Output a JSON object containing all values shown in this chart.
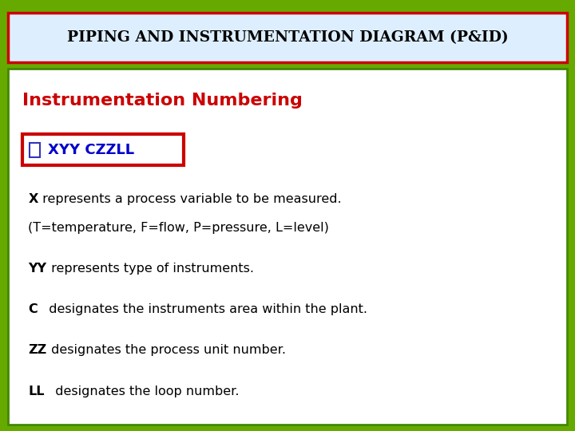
{
  "title": "PIPING AND INSTRUMENTATION DIAGRAM (P&ID)",
  "title_color": "#000000",
  "title_fontsize": 13.5,
  "title_fill": "#ddeeff",
  "title_border": "#cc0000",
  "subtitle": "Instrumentation Numbering",
  "subtitle_color": "#cc0000",
  "subtitle_fontsize": 16,
  "badge_text": "XYY CZZLL",
  "badge_text_color": "#0000cc",
  "badge_bg": "#ffffff",
  "badge_border": "#cc0000",
  "outer_bg": "#66aa00",
  "inner_bg": "#ffffff",
  "inner_border": "#448800",
  "lines": [
    {
      "bold": "X",
      "rest": " represents a process variable to be measured."
    },
    {
      "bold": "",
      "rest": "(T=temperature, F=flow, P=pressure, L=level)"
    },
    {
      "bold": "YY",
      "rest": " represents type of instruments."
    },
    {
      "bold": "C",
      "rest": "   designates the instruments area within the plant."
    },
    {
      "bold": "ZZ",
      "rest": " designates the process unit number."
    },
    {
      "bold": "LL",
      "rest": "  designates the loop number."
    }
  ],
  "body_fontsize": 11.5,
  "checkbox_color": "#3333bb"
}
